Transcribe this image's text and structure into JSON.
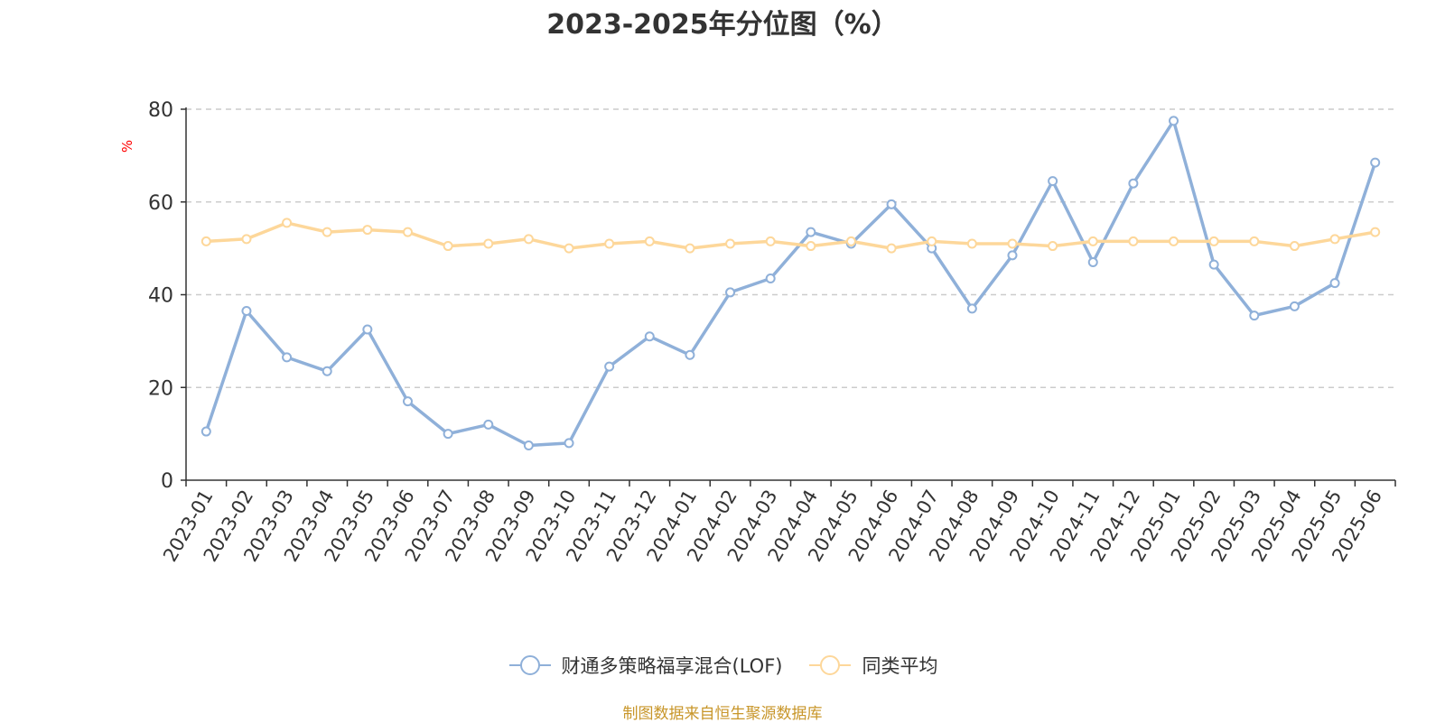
{
  "chart_data": {
    "type": "line",
    "title": "2023-2025年分位图（%）",
    "ylabel": "%",
    "ylim": [
      0,
      80
    ],
    "yticks": [
      0,
      20,
      40,
      60,
      80
    ],
    "grid": true,
    "legend_position": "bottom",
    "categories": [
      "2023-01",
      "2023-02",
      "2023-03",
      "2023-04",
      "2023-05",
      "2023-06",
      "2023-07",
      "2023-08",
      "2023-09",
      "2023-10",
      "2023-11",
      "2023-12",
      "2024-01",
      "2024-02",
      "2024-03",
      "2024-04",
      "2024-05",
      "2024-06",
      "2024-07",
      "2024-08",
      "2024-09",
      "2024-10",
      "2024-11",
      "2024-12",
      "2025-01",
      "2025-02",
      "2025-03",
      "2025-04",
      "2025-05",
      "2025-06"
    ],
    "series": [
      {
        "name": "财通多策略福享混合(LOF)",
        "color": "#8fb0d9",
        "values": [
          10.5,
          36.5,
          26.5,
          23.5,
          32.5,
          17,
          10,
          12,
          7.5,
          8,
          24.5,
          31,
          27,
          40.5,
          43.5,
          53.5,
          51,
          59.5,
          50,
          37,
          48.5,
          64.5,
          47,
          64,
          77.5,
          46.5,
          35.5,
          37.5,
          42.5,
          68.5
        ]
      },
      {
        "name": "同类平均",
        "color": "#fdd79a",
        "values": [
          51.5,
          52,
          55.5,
          53.5,
          54,
          53.5,
          50.5,
          51,
          52,
          50,
          51,
          51.5,
          50,
          51,
          51.5,
          50.5,
          51.5,
          50,
          51.5,
          51,
          51,
          50.5,
          51.5,
          51.5,
          51.5,
          51.5,
          51.5,
          50.5,
          52,
          53.5
        ]
      }
    ]
  },
  "source_note": "制图数据来自恒生聚源数据库"
}
